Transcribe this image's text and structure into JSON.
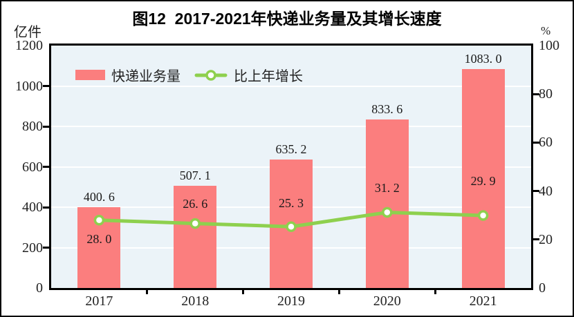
{
  "title": "图12  2017-2021年快递业务量及其增长速度",
  "left_axis": {
    "unit": "亿件",
    "ticks": [
      1200,
      1000,
      800,
      600,
      400,
      200,
      0
    ],
    "max": 1200
  },
  "right_axis": {
    "unit": "%",
    "ticks": [
      100,
      80,
      60,
      40,
      20,
      0
    ],
    "max": 100
  },
  "legend": {
    "bar_label": "快递业务量",
    "line_label": "比上年增长"
  },
  "colors": {
    "bar": "#fb7e7e",
    "line": "#8ed04e",
    "marker_fill": "#ffffff",
    "plot_bg": "#ebf3f8",
    "grid": "#ffffff",
    "axis": "#000000",
    "text": "#1a1a1a"
  },
  "chart_data": {
    "type": "bar",
    "combo": "bar+line",
    "title": "图12  2017-2021年快递业务量及其增长速度",
    "categories": [
      "2017",
      "2018",
      "2019",
      "2020",
      "2021"
    ],
    "series": [
      {
        "name": "快递业务量",
        "type": "bar",
        "axis": "left",
        "unit": "亿件",
        "values": [
          400.6,
          507.1,
          635.2,
          833.6,
          1083.0
        ],
        "labels": [
          "400. 6",
          "507. 1",
          "635. 2",
          "833. 6",
          "1083. 0"
        ]
      },
      {
        "name": "比上年增长",
        "type": "line",
        "axis": "right",
        "unit": "%",
        "values": [
          28.0,
          26.6,
          25.3,
          31.2,
          29.9
        ],
        "labels": [
          "28. 0",
          "26. 6",
          "25. 3",
          "31. 2",
          "29. 9"
        ]
      }
    ],
    "ylim_left": [
      0,
      1200
    ],
    "ylim_right": [
      0,
      100
    ],
    "grid": "horizontal white lines at left-axis steps of 200",
    "legend_position": "top-left-inside",
    "line_label_offsets": [
      27,
      -29,
      -34,
      -35,
      -50
    ]
  }
}
